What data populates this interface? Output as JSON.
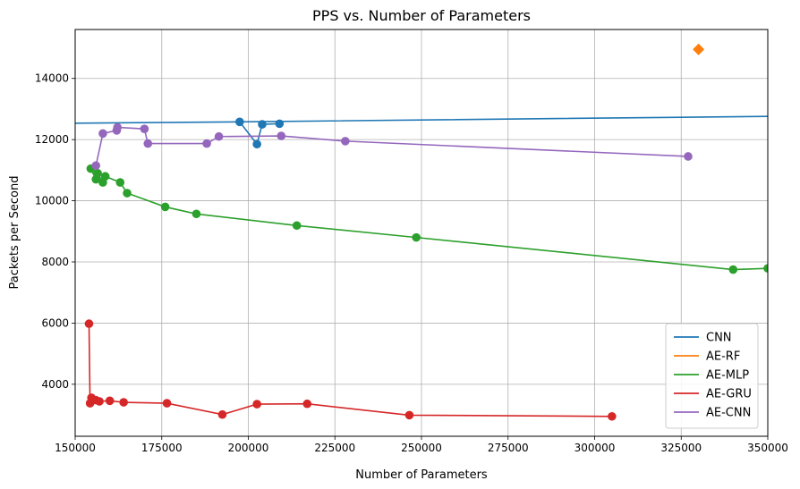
{
  "chart_data": {
    "type": "line",
    "title": "PPS vs. Number of Parameters",
    "xlabel": "Number of Parameters",
    "ylabel": "Packets per Second",
    "xlim": [
      150000,
      350000
    ],
    "ylim": [
      2300,
      15600
    ],
    "xticks": [
      150000,
      175000,
      200000,
      225000,
      250000,
      275000,
      300000,
      325000,
      350000
    ],
    "yticks": [
      4000,
      6000,
      8000,
      10000,
      12000,
      14000
    ],
    "grid": true,
    "legend_position": "lower-right",
    "series": [
      {
        "name": "CNN",
        "color": "#1f77b4",
        "line": [
          [
            0,
            12400
          ],
          [
            197500,
            12580
          ],
          [
            350000,
            12760
          ]
        ],
        "points": [
          [
            197500,
            12580
          ],
          [
            202500,
            11850
          ],
          [
            204000,
            12500
          ],
          [
            209000,
            12520
          ]
        ],
        "path": [
          [
            197500,
            12580
          ],
          [
            202500,
            11850
          ],
          [
            204000,
            12500
          ],
          [
            209000,
            12520
          ]
        ],
        "marker": "circle"
      },
      {
        "name": "AE-RF",
        "color": "#ff7f0e",
        "points": [
          [
            330000,
            14950
          ]
        ],
        "marker": "diamond"
      },
      {
        "name": "AE-MLP",
        "color": "#2ca02c",
        "points": [
          [
            154500,
            11050
          ],
          [
            156000,
            10700
          ],
          [
            156500,
            10900
          ],
          [
            158000,
            10600
          ],
          [
            158700,
            10800
          ],
          [
            163000,
            10600
          ],
          [
            165000,
            10250
          ],
          [
            176000,
            9800
          ],
          [
            185000,
            9570
          ],
          [
            214000,
            9190
          ],
          [
            248500,
            8800
          ],
          [
            340000,
            7750
          ],
          [
            350000,
            7790
          ]
        ],
        "marker": "circle"
      },
      {
        "name": "AE-GRU",
        "color": "#d62728",
        "points": [
          [
            154000,
            5980
          ],
          [
            154300,
            3380
          ],
          [
            154700,
            3560
          ],
          [
            156000,
            3480
          ],
          [
            157000,
            3440
          ],
          [
            160000,
            3460
          ],
          [
            164000,
            3410
          ],
          [
            176500,
            3380
          ],
          [
            192500,
            3010
          ],
          [
            202500,
            3350
          ],
          [
            217000,
            3360
          ],
          [
            246500,
            2990
          ],
          [
            305000,
            2950
          ]
        ],
        "marker": "circle"
      },
      {
        "name": "AE-CNN",
        "color": "#9467bd",
        "points": [
          [
            156000,
            11150
          ],
          [
            158000,
            12200
          ],
          [
            162000,
            12300
          ],
          [
            162200,
            12400
          ],
          [
            170000,
            12350
          ],
          [
            171000,
            11870
          ],
          [
            188000,
            11870
          ],
          [
            191500,
            12100
          ],
          [
            209500,
            12120
          ],
          [
            228000,
            11950
          ],
          [
            327000,
            11450
          ]
        ],
        "marker": "circle"
      }
    ]
  }
}
